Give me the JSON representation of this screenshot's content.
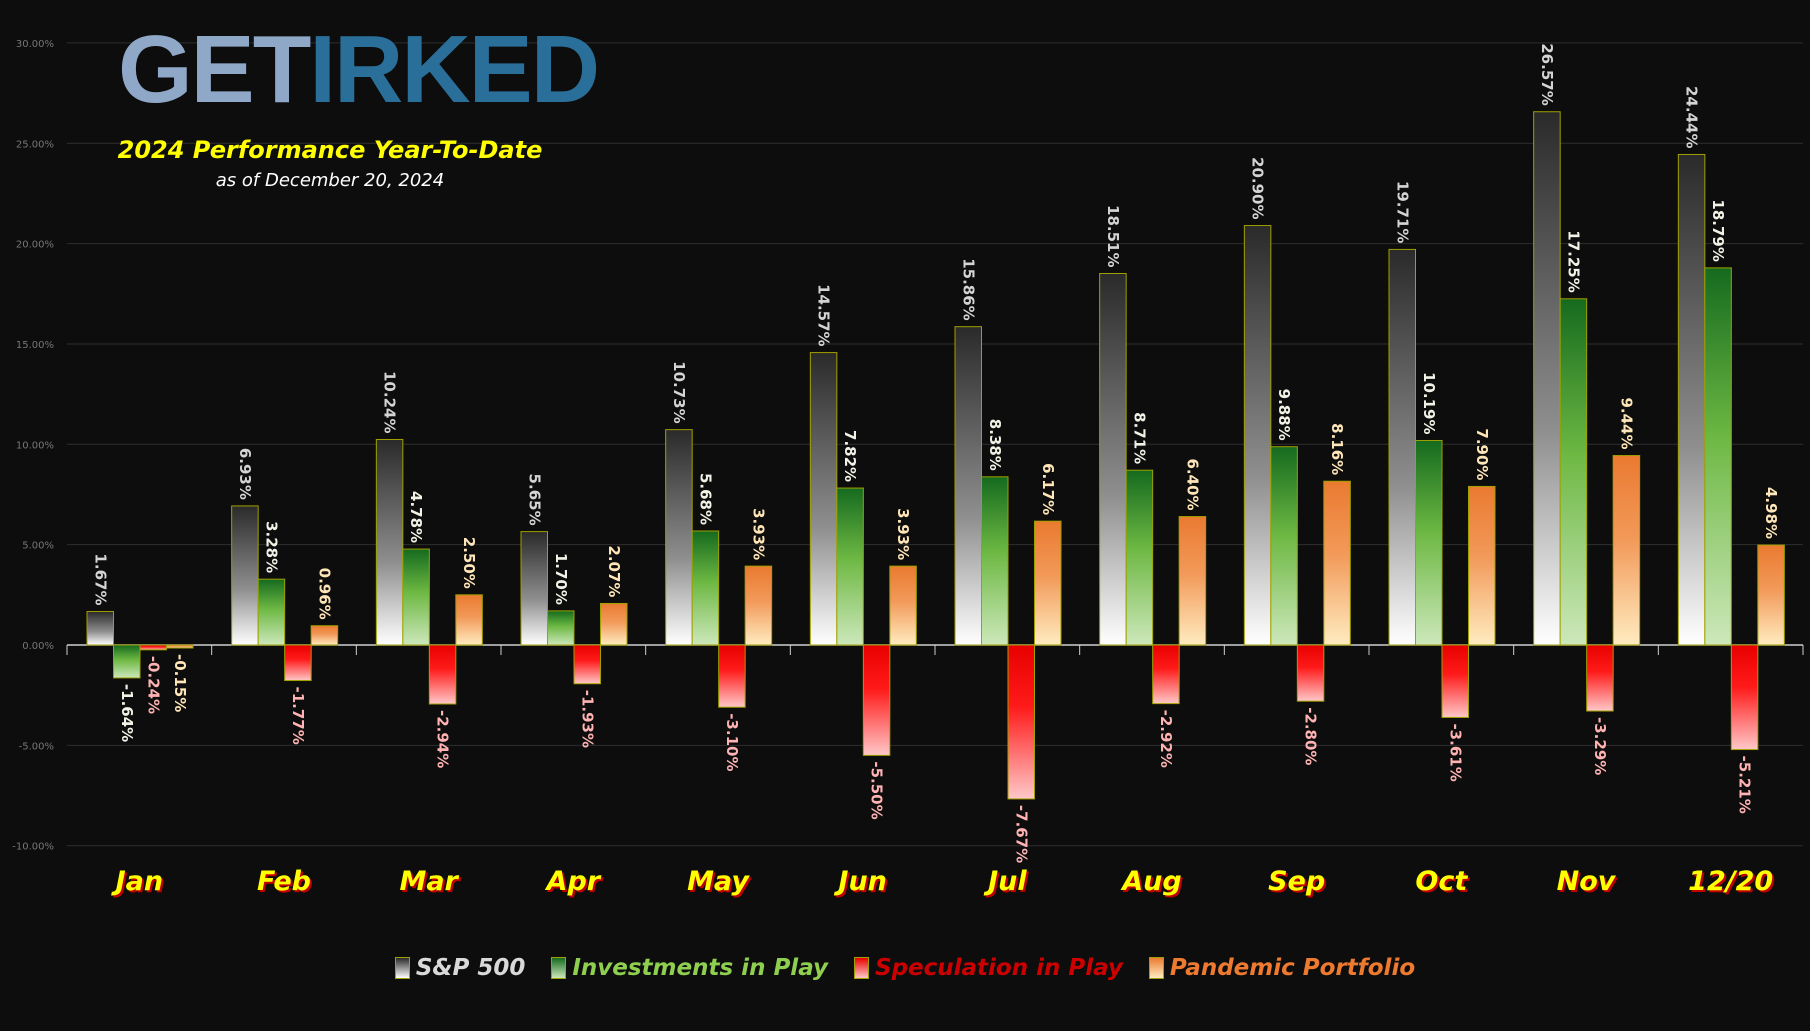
{
  "logo": {
    "part1": "GET",
    "part2": "IRKED"
  },
  "subtitle": "2024 Performance Year-To-Date",
  "date_note": "as of December 20, 2024",
  "colors": {
    "sp500": "#8a8a8a",
    "investments": "#7cc44a",
    "speculation": "#e00000",
    "pandemic": "#ee7a30",
    "outline": "#a0a000",
    "month_label": "#ffff00"
  },
  "chart_data": {
    "type": "bar",
    "categories": [
      "Jan",
      "Feb",
      "Mar",
      "Apr",
      "May",
      "Jun",
      "Jul",
      "Aug",
      "Sep",
      "Oct",
      "Nov",
      "12/20"
    ],
    "ylim": [
      -10,
      30
    ],
    "yticks": [
      "-10.00%",
      "-5.00%",
      "0.00%",
      "5.00%",
      "10.00%",
      "15.00%",
      "20.00%",
      "25.00%",
      "30.00%"
    ],
    "ytick_values": [
      -10,
      -5,
      0,
      5,
      10,
      15,
      20,
      25,
      30
    ],
    "grid": true,
    "legend_placement": "bottom",
    "series": [
      {
        "name": "S&P 500",
        "values": [
          1.67,
          6.93,
          10.24,
          5.65,
          10.73,
          14.57,
          15.86,
          18.51,
          20.9,
          19.71,
          26.57,
          24.44
        ]
      },
      {
        "name": "Investments in Play",
        "values": [
          -1.64,
          3.28,
          4.78,
          1.7,
          5.68,
          7.82,
          8.38,
          8.71,
          9.88,
          10.19,
          17.25,
          18.79
        ]
      },
      {
        "name": "Speculation in Play",
        "values": [
          -0.24,
          -1.77,
          -2.94,
          -1.93,
          -3.1,
          -5.5,
          -7.67,
          -2.92,
          -2.8,
          -3.61,
          -3.29,
          -5.21
        ]
      },
      {
        "name": "Pandemic Portfolio",
        "values": [
          -0.15,
          0.96,
          2.5,
          2.07,
          3.93,
          3.93,
          6.17,
          6.4,
          8.16,
          7.9,
          9.44,
          4.98
        ]
      }
    ]
  }
}
